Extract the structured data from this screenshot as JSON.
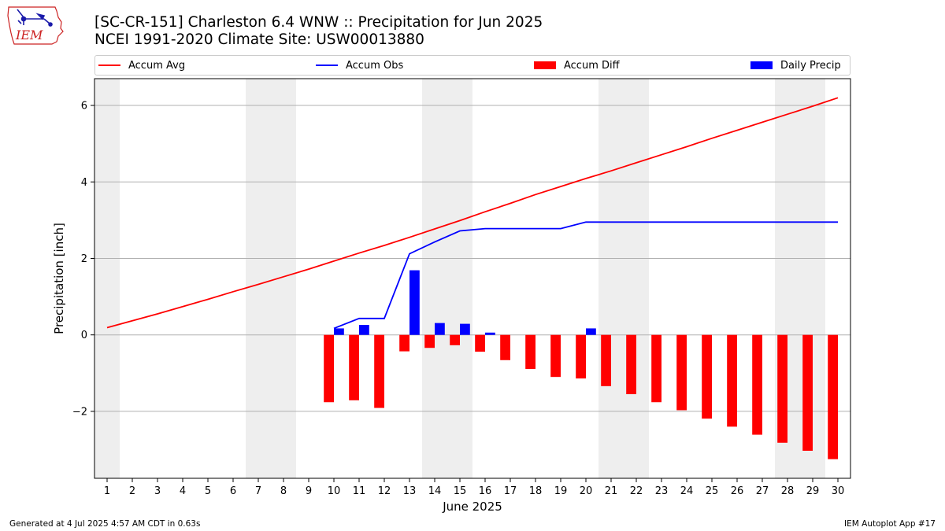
{
  "logo": {
    "text": "IEM"
  },
  "title_line1": "[SC-CR-151] Charleston 6.4 WNW :: Precipitation for Jun 2025",
  "title_line2": "NCEI 1991-2020 Climate Site: USW00013880",
  "legend": [
    {
      "label": "Accum Avg",
      "kind": "line",
      "color": "#ff0000"
    },
    {
      "label": "Accum Obs",
      "kind": "line",
      "color": "#0000ff"
    },
    {
      "label": "Accum Diff",
      "kind": "box",
      "color": "#ff0000"
    },
    {
      "label": "Daily Precip",
      "kind": "box",
      "color": "#0000ff"
    }
  ],
  "footer_left": "Generated at 4 Jul 2025 4:57 AM CDT in 0.63s",
  "footer_right": "IEM Autoplot App #17",
  "chart_data": {
    "type": "bar",
    "xlabel": "June 2025",
    "ylabel": "Precipitation [inch]",
    "x": [
      1,
      2,
      3,
      4,
      5,
      6,
      7,
      8,
      9,
      10,
      11,
      12,
      13,
      14,
      15,
      16,
      17,
      18,
      19,
      20,
      21,
      22,
      23,
      24,
      25,
      26,
      27,
      28,
      29,
      30
    ],
    "xlim": [
      0.5,
      30.5
    ],
    "ylim": [
      -3.75,
      6.7
    ],
    "yticks": [
      -2,
      0,
      2,
      4,
      6
    ],
    "grid": "horizontal",
    "legend_position": "top",
    "weekend_shading": [
      [
        0.5,
        1.5
      ],
      [
        6.5,
        8.5
      ],
      [
        13.5,
        15.5
      ],
      [
        20.5,
        22.5
      ],
      [
        27.5,
        29.5
      ]
    ],
    "shading_color": "#eeeeee",
    "series": [
      {
        "name": "Accum Avg",
        "kind": "line",
        "color": "#ff0000",
        "x": [
          1,
          2,
          3,
          4,
          5,
          6,
          7,
          8,
          9,
          10,
          11,
          12,
          13,
          14,
          15,
          16,
          17,
          18,
          19,
          20,
          21,
          22,
          23,
          24,
          25,
          26,
          27,
          28,
          29,
          30
        ],
        "values": [
          0.19,
          0.37,
          0.55,
          0.74,
          0.93,
          1.13,
          1.32,
          1.52,
          1.72,
          1.93,
          2.14,
          2.34,
          2.55,
          2.77,
          2.99,
          3.22,
          3.44,
          3.67,
          3.88,
          4.09,
          4.29,
          4.5,
          4.71,
          4.92,
          5.14,
          5.35,
          5.56,
          5.77,
          5.98,
          6.2
        ]
      },
      {
        "name": "Accum Obs",
        "kind": "line",
        "color": "#0000ff",
        "x": [
          10,
          11,
          12,
          13,
          14,
          15,
          16,
          17,
          18,
          19,
          20,
          21,
          22,
          23,
          24,
          25,
          26,
          27,
          28,
          29,
          30
        ],
        "values": [
          0.17,
          0.43,
          0.43,
          2.12,
          2.43,
          2.72,
          2.78,
          2.78,
          2.78,
          2.78,
          2.95,
          2.95,
          2.95,
          2.95,
          2.95,
          2.95,
          2.95,
          2.95,
          2.95,
          2.95,
          2.95
        ]
      },
      {
        "name": "Accum Diff",
        "kind": "bar",
        "color": "#ff0000",
        "x": [
          10,
          11,
          12,
          13,
          14,
          15,
          16,
          17,
          18,
          19,
          20,
          21,
          22,
          23,
          24,
          25,
          26,
          27,
          28,
          29,
          30
        ],
        "values": [
          -1.76,
          -1.71,
          -1.91,
          -0.43,
          -0.34,
          -0.27,
          -0.44,
          -0.66,
          -0.89,
          -1.1,
          -1.14,
          -1.34,
          -1.55,
          -1.76,
          -1.97,
          -2.19,
          -2.4,
          -2.61,
          -2.82,
          -3.03,
          -3.25
        ]
      },
      {
        "name": "Daily Precip",
        "kind": "bar",
        "color": "#0000ff",
        "x": [
          10,
          11,
          13,
          14,
          15,
          16,
          20
        ],
        "values": [
          0.17,
          0.26,
          1.69,
          0.31,
          0.29,
          0.06,
          0.17
        ]
      }
    ]
  }
}
